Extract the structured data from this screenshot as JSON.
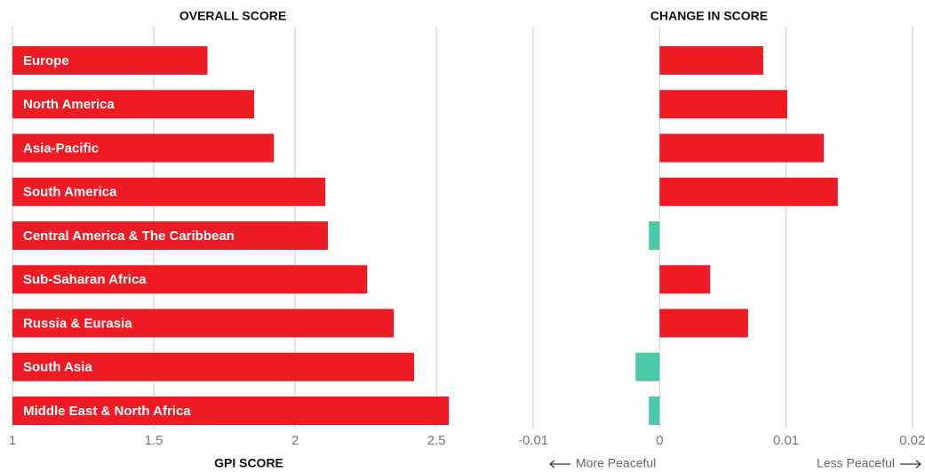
{
  "chart_data": [
    {
      "type": "bar",
      "orientation": "horizontal",
      "title": "OVERALL SCORE",
      "x_label": "GPI SCORE",
      "categories": [
        "Europe",
        "North America",
        "Asia-Pacific",
        "South America",
        "Central America & The Caribbean",
        "Sub-Saharan Africa",
        "Russia & Eurasia",
        "South Asia",
        "Middle East & North Africa"
      ],
      "values": [
        1.69,
        1.855,
        1.925,
        2.107,
        2.116,
        2.255,
        2.349,
        2.421,
        2.544
      ],
      "color": "#ed1c24",
      "xlim": [
        1,
        2.6
      ],
      "xticks": [
        1,
        1.5,
        2,
        2.5
      ],
      "grid": true
    },
    {
      "type": "bar",
      "orientation": "horizontal",
      "title": "CHANGE IN SCORE",
      "values": [
        0.0082,
        0.0101,
        0.013,
        0.0141,
        -0.00085,
        0.004,
        0.007,
        -0.0019,
        -0.00085
      ],
      "color": "#ed1c24",
      "negative_color": "#4ec9a8",
      "xlim": [
        -0.0112,
        0.021
      ],
      "xticks": [
        -0.01,
        0,
        0.01,
        0.02
      ],
      "grid": true,
      "annotations": [
        "More Peaceful",
        "Less Peaceful"
      ]
    }
  ]
}
